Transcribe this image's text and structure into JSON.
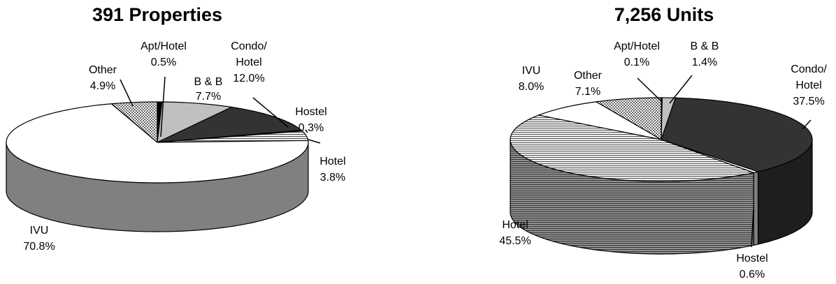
{
  "chart_data": [
    {
      "type": "pie",
      "title": "391 Properties",
      "slices": [
        {
          "label": "Apt/Hotel",
          "value": 0.5,
          "display": "0.5%",
          "fill": "#000000"
        },
        {
          "label": "B & B",
          "value": 7.7,
          "display": "7.7%",
          "fill": "#c0c0c0"
        },
        {
          "label": "Condo/ Hotel",
          "value": 12.0,
          "display": "12.0%",
          "fill": "#333333"
        },
        {
          "label": "Hostel",
          "value": 0.3,
          "display": "0.3%",
          "fill": "#ffffff"
        },
        {
          "label": "Hotel",
          "value": 3.8,
          "display": "3.8%",
          "fill": "hstripe"
        },
        {
          "label": "IVU",
          "value": 70.8,
          "display": "70.8%",
          "fill": "#ffffff"
        },
        {
          "label": "Other",
          "value": 4.9,
          "display": "4.9%",
          "fill": "check"
        }
      ]
    },
    {
      "type": "pie",
      "title": "7,256 Units",
      "slices": [
        {
          "label": "Apt/Hotel",
          "value": 0.1,
          "display": "0.1%",
          "fill": "#000000"
        },
        {
          "label": "B & B",
          "value": 1.4,
          "display": "1.4%",
          "fill": "#c0c0c0"
        },
        {
          "label": "Condo/ Hotel",
          "value": 37.5,
          "display": "37.5%",
          "fill": "#333333"
        },
        {
          "label": "Hostel",
          "value": 0.6,
          "display": "0.6%",
          "fill": "#ffffff"
        },
        {
          "label": "Hotel",
          "value": 45.5,
          "display": "45.5%",
          "fill": "hstripe"
        },
        {
          "label": "IVU",
          "value": 8.0,
          "display": "8.0%",
          "fill": "#ffffff"
        },
        {
          "label": "Other",
          "value": 7.1,
          "display": "7.1%",
          "fill": "check"
        }
      ]
    }
  ]
}
